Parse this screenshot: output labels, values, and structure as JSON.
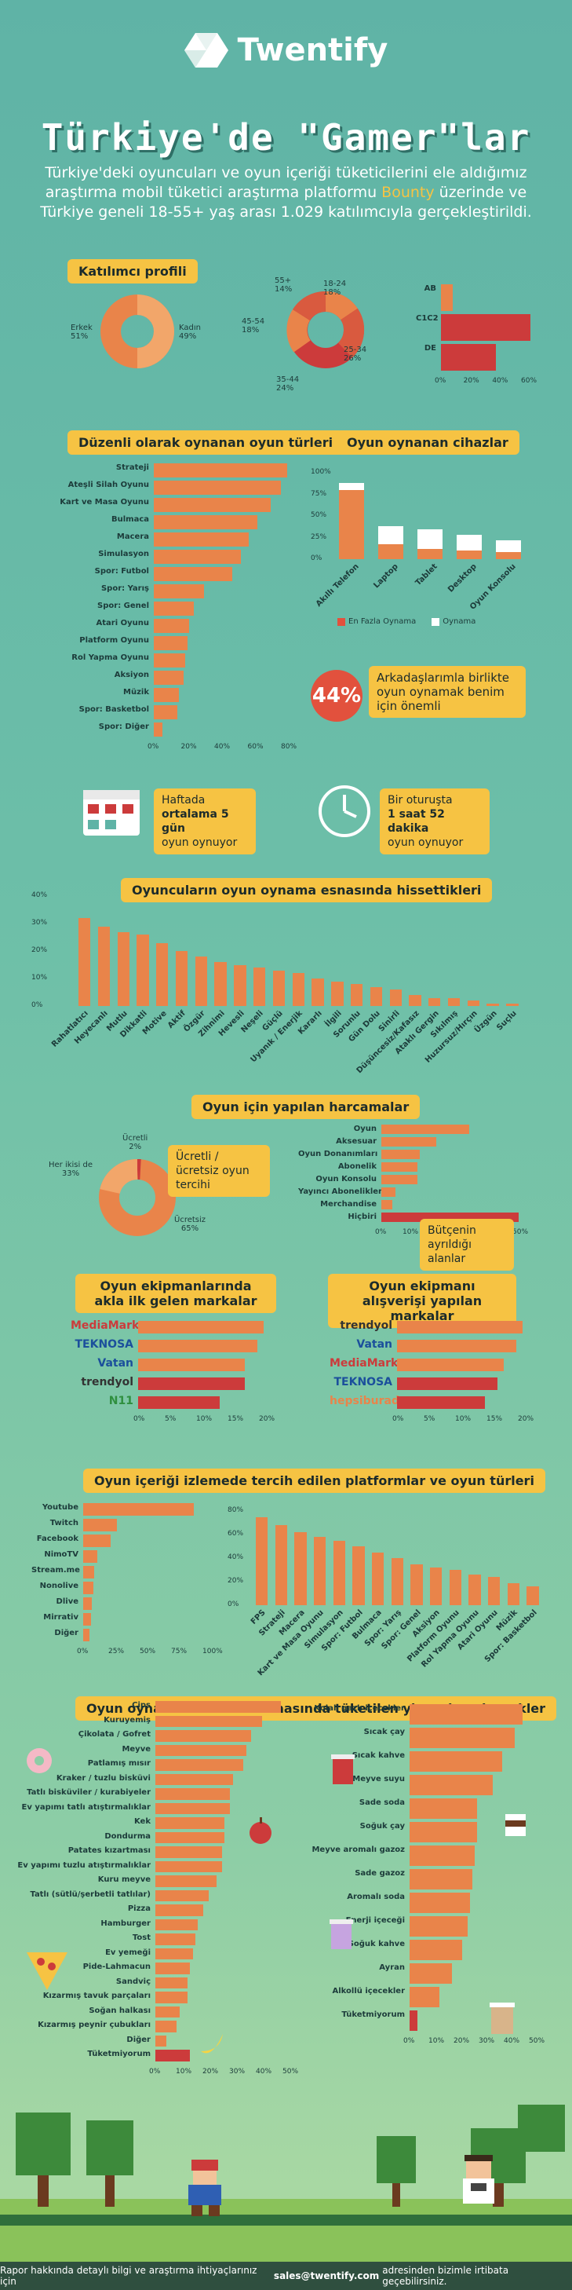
{
  "brand": "Twentify",
  "title": "Türkiye'de \"Gamer\"lar",
  "intro": {
    "before": "Türkiye'deki oyuncuları ve oyun içeriği tüketicilerini ele aldığımız araştırma mobil tüketici araştırma platformu ",
    "highlight": "Bounty",
    "after": " üzerinde ve Türkiye geneli 18-55+ yaş arası 1.029 katılımcıyla gerçekleştirildi."
  },
  "profile": {
    "title": "Katılımcı profili",
    "gender": [
      {
        "label": "Erkek",
        "value": "51%"
      },
      {
        "label": "Kadın",
        "value": "49%"
      }
    ],
    "age": [
      {
        "label": "55+",
        "value": "14%"
      },
      {
        "label": "18-24",
        "value": "18%"
      },
      {
        "label": "25-34",
        "value": "26%"
      },
      {
        "label": "35-44",
        "value": "24%"
      },
      {
        "label": "45-54",
        "value": "18%"
      }
    ],
    "ses": {
      "categories": [
        "AB",
        "C1C2",
        "DE"
      ],
      "values": [
        8,
        62,
        38
      ],
      "ticks": [
        "0%",
        "20%",
        "40%",
        "60%"
      ]
    }
  },
  "genres": {
    "title": "Düzenli olarak oynanan oyun türleri",
    "categories": [
      "Strateji",
      "Ateşli Silah Oyunu",
      "Kart ve Masa Oyunu",
      "Bulmaca",
      "Macera",
      "Simulasyon",
      "Spor: Futbol",
      "Spor: Yarış",
      "Spor: Genel",
      "Atari Oyunu",
      "Platform Oyunu",
      "Rol Yapma Oyunu",
      "Aksiyon",
      "Müzik",
      "Spor: Basketbol",
      "Spor: Diğer"
    ],
    "values": [
      80,
      76,
      70,
      62,
      57,
      52,
      47,
      30,
      24,
      21,
      20,
      19,
      18,
      15,
      14,
      5
    ],
    "ticks": [
      "0%",
      "20%",
      "40%",
      "60%",
      "80%"
    ]
  },
  "devices": {
    "title": "Oyun oynanan cihazlar",
    "categories": [
      "Akıllı Telefon",
      "Laptop",
      "Tablet",
      "Desktop",
      "Oyun Konsolu"
    ],
    "most": [
      80,
      17,
      12,
      10,
      8
    ],
    "play": [
      88,
      38,
      35,
      28,
      22
    ],
    "ticks": [
      "100%",
      "75%",
      "50%",
      "25%",
      "0%"
    ],
    "legend_most": "En Fazla Oynama",
    "legend_play": "Oynama"
  },
  "friends": {
    "pct": "44%",
    "text": "Arkadaşlarımla birlikte oyun oynamak benim için önemli"
  },
  "weekly": {
    "line1": "Haftada",
    "line2": "ortalama 5 gün",
    "line3": "oyun oynuyor"
  },
  "session": {
    "line1": "Bir oturuşta",
    "line2": "1 saat 52 dakika",
    "line3": "oyun oynuyor"
  },
  "feelings": {
    "title": "Oyuncuların oyun oynama esnasında hissettikleri",
    "categories": [
      "Rahatlatıcı",
      "Heyecanlı",
      "Mutlu",
      "Dikkatli",
      "Motive",
      "Aktif",
      "Özgür",
      "Zihnimi",
      "Hevesli",
      "Neşeli",
      "Güçlü",
      "Uyanık / Enerjik",
      "Kararlı",
      "İlgili",
      "Sorunlu",
      "Gün Dolu",
      "Sinirli",
      "Düşüncesiz/Kafasız",
      "Ataklı Gergin",
      "Sıkılmış",
      "Huzursuz/Hırçın",
      "Üzgün",
      "Suçlu"
    ],
    "values": [
      32,
      29,
      27,
      26,
      23,
      20,
      18,
      16,
      15,
      14,
      13,
      12,
      10,
      9,
      8,
      7,
      6,
      4,
      3,
      3,
      2,
      1,
      1
    ],
    "ticks": [
      "40%",
      "30%",
      "20%",
      "10%",
      "0%"
    ]
  },
  "spend": {
    "title": "Oyun için yapılan harcamalar",
    "pie": [
      {
        "label": "Ücretli",
        "value": "2%"
      },
      {
        "label": "Her ikisi de",
        "value": "33%"
      },
      {
        "label": "Ücretsiz",
        "value": "65%"
      }
    ],
    "pie_note": "Ücretli / ücretsiz oyun tercihi",
    "categories": [
      "Oyun",
      "Aksesuar",
      "Oyun Donanımları",
      "Abonelik",
      "Oyun Konsolu",
      "Yayıncı Abonelikleri",
      "Merchandise",
      "Hiçbiri"
    ],
    "values": [
      32,
      20,
      14,
      13,
      13,
      5,
      4,
      50
    ],
    "ticks": [
      "0%",
      "10%",
      "20%",
      "30%",
      "40%",
      "50%"
    ],
    "note": "Bütçenin ayrıldığı alanlar"
  },
  "brands_equipment": {
    "title": "Oyun ekipmanlarında akla ilk gelen markalar",
    "brands": [
      "MediaMarkt",
      "TEKNOSA",
      "Vatan",
      "trendyol",
      "N11"
    ],
    "values": [
      20,
      19,
      17,
      17,
      13
    ],
    "ticks": [
      "0%",
      "5%",
      "10%",
      "15%",
      "20%"
    ]
  },
  "brands_shopping": {
    "title": "Oyun ekipmanı alışverişi yapılan markalar",
    "brands": [
      "trendyol",
      "Vatan",
      "MediaMarkt",
      "TEKNOSA",
      "hepsiburada"
    ],
    "values": [
      20,
      19,
      17,
      16,
      14
    ],
    "ticks": [
      "0%",
      "5%",
      "10%",
      "15%",
      "20%"
    ]
  },
  "platforms": {
    "title": "Oyun içeriği izlemede tercih edilen platformlar ve oyun türleri",
    "categories": [
      "Youtube",
      "Twitch",
      "Facebook",
      "NimoTV",
      "Stream.me",
      "Nonolive",
      "Dlive",
      "Mirrativ",
      "Diğer"
    ],
    "values": [
      88,
      27,
      22,
      11,
      9,
      8,
      7,
      6,
      5
    ],
    "ticks": [
      "0%",
      "25%",
      "50%",
      "75%",
      "100%"
    ],
    "genres_categories": [
      "FPS",
      "Strateji",
      "Macera",
      "Kart ve Masa Oyunu",
      "Simulasyon",
      "Spor: Futbol",
      "Bulmaca",
      "Spor: Yarış",
      "Spor: Genel",
      "Aksiyon",
      "Platform Oyunu",
      "Rol Yapma Oyunu",
      "Atari Oyunu",
      "Müzik",
      "Spor: Basketbol"
    ],
    "genres_values": [
      75,
      68,
      62,
      58,
      55,
      50,
      45,
      40,
      35,
      32,
      30,
      26,
      24,
      19,
      16
    ],
    "genres_ticks": [
      "80%",
      "60%",
      "40%",
      "20%",
      "0%"
    ]
  },
  "foods": {
    "title": "Oyun oynama ve izleme esnasında tüketilen yiyecek ve içecekler",
    "food_categories": [
      "Cips",
      "Kuruyemiş",
      "Çikolata / Gofret",
      "Meyve",
      "Patlamış mısır",
      "Kraker / tuzlu bisküvi",
      "Tatlı bisküviler / kurabiyeler",
      "Ev yapımı tatlı atıştırmalıklar",
      "Kek",
      "Dondurma",
      "Patates kızartması",
      "Ev yapımı tuzlu atıştırmalıklar",
      "Kuru meyve",
      "Tatlı (sütlü/şerbetli tatlılar)",
      "Pizza",
      "Hamburger",
      "Tost",
      "Ev yemeği",
      "Pide-Lahmacun",
      "Sandviç",
      "Kızarmış tavuk parçaları",
      "Soğan halkası",
      "Kızarmış peynir çubukları",
      "Diğer",
      "Tüketmiyorum"
    ],
    "food_values": [
      47,
      40,
      36,
      34,
      33,
      29,
      28,
      28,
      26,
      26,
      25,
      25,
      23,
      20,
      18,
      16,
      15,
      14,
      13,
      12,
      12,
      9,
      8,
      4,
      13
    ],
    "food_ticks": [
      "0%",
      "10%",
      "20%",
      "30%",
      "40%",
      "50%"
    ],
    "drink_categories": [
      "Kolalı gazlı içecekler",
      "Sıcak çay",
      "Sıcak kahve",
      "Meyve suyu",
      "Sade soda",
      "Soğuk çay",
      "Meyve aromalı gazoz",
      "Sade gazoz",
      "Aromalı soda",
      "Enerji içeceği",
      "Soğuk kahve",
      "Ayran",
      "Alkollü içecekler",
      "Tüketmiyorum"
    ],
    "drink_values": [
      45,
      42,
      37,
      33,
      27,
      27,
      26,
      25,
      24,
      23,
      21,
      17,
      12,
      3
    ],
    "drink_ticks": [
      "0%",
      "10%",
      "20%",
      "30%",
      "40%",
      "50%"
    ]
  },
  "footer": {
    "before": "Rapor hakkında detaylı bilgi ve araştırma ihtiyaçlarınız için",
    "email": "sales@twentify.com",
    "after": "adresinden bizimle irtibata geçebilirsiniz."
  },
  "colors": {
    "orange": "#e9844a",
    "red": "#cc3b3b",
    "yellow": "#f6c343",
    "teal": "#5fb3a6"
  }
}
